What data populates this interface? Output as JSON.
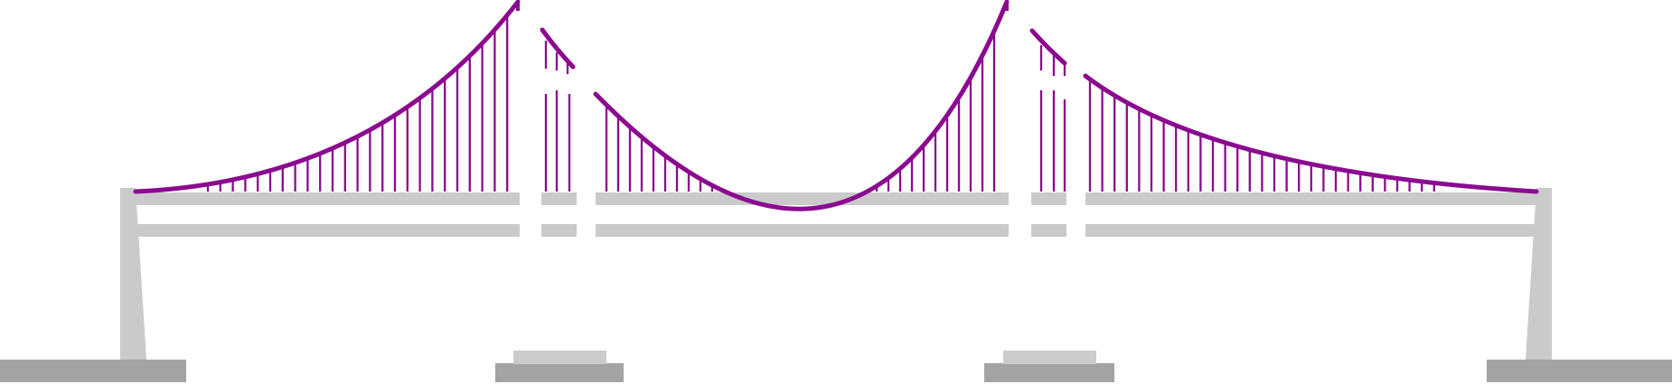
{
  "illustration": {
    "subject": "suspension-bridge",
    "colors": {
      "background": "#ffffff",
      "cable": "#8b0a8f",
      "deck": "#cacacb",
      "tower": "#cacacb",
      "foundation_dark": "#a3a3a4",
      "foundation_light": "#cbcbcc"
    }
  }
}
